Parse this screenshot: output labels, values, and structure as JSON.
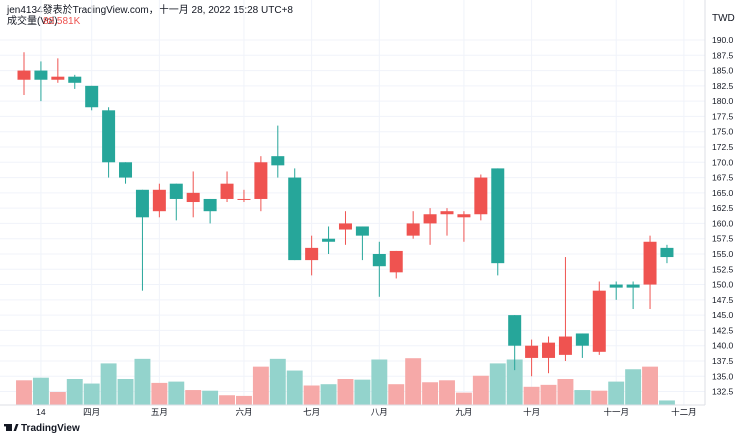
{
  "header": {
    "publisher": "jen4134發表於TradingView.com，十一月 28, 2022 15:28 UTC+8"
  },
  "footer": {
    "brand": "TradingView",
    "brand_icon": "tradingview-logo-icon"
  },
  "colors": {
    "up": "#ef5350",
    "down": "#26a69a",
    "vol_up": "#f6a9a8",
    "vol_down": "#93d3cc",
    "grid": "#f0f3fa",
    "axis_line": "#dcdfe6",
    "label_red": "#ef5350"
  },
  "chart_data": {
    "type": "candlestick",
    "title": "",
    "currency": "TWD",
    "ylim": [
      130.0,
      192.5
    ],
    "y_ticks": [
      132.5,
      135.0,
      137.5,
      140.0,
      142.5,
      145.0,
      147.5,
      150.0,
      152.5,
      155.0,
      157.5,
      160.0,
      162.5,
      165.0,
      167.5,
      170.0,
      172.5,
      175.0,
      177.5,
      180.0,
      182.5,
      185.0,
      187.5,
      190.0
    ],
    "x_ticks": [
      {
        "label": "14",
        "bar": 1
      },
      {
        "label": "四月",
        "bar": 4
      },
      {
        "label": "五月",
        "bar": 8
      },
      {
        "label": "六月",
        "bar": 13
      },
      {
        "label": "七月",
        "bar": 17
      },
      {
        "label": "八月",
        "bar": 21
      },
      {
        "label": "九月",
        "bar": 26
      },
      {
        "label": "十月",
        "bar": 30
      },
      {
        "label": "十一月",
        "bar": 35
      },
      {
        "label": "十二月",
        "bar": 39
      }
    ],
    "volume_indicator": {
      "name": "成交量(Vol)",
      "last_value": "88.581K"
    },
    "candles": [
      {
        "o": 183.5,
        "h": 188.0,
        "l": 181.0,
        "c": 185.0
      },
      {
        "o": 185.0,
        "h": 186.5,
        "l": 180.0,
        "c": 183.5
      },
      {
        "o": 183.5,
        "h": 187.0,
        "l": 183.0,
        "c": 184.0
      },
      {
        "o": 184.0,
        "h": 184.3,
        "l": 182.0,
        "c": 183.0
      },
      {
        "o": 182.5,
        "h": 182.5,
        "l": 178.5,
        "c": 179.0
      },
      {
        "o": 178.5,
        "h": 179.0,
        "l": 167.5,
        "c": 170.0
      },
      {
        "o": 170.0,
        "h": 170.0,
        "l": 166.5,
        "c": 167.5
      },
      {
        "o": 165.5,
        "h": 165.5,
        "l": 149.0,
        "c": 161.0
      },
      {
        "o": 162.0,
        "h": 166.5,
        "l": 161.0,
        "c": 165.5
      },
      {
        "o": 166.5,
        "h": 166.5,
        "l": 160.5,
        "c": 164.0
      },
      {
        "o": 163.5,
        "h": 168.5,
        "l": 161.0,
        "c": 165.0
      },
      {
        "o": 164.0,
        "h": 164.0,
        "l": 160.0,
        "c": 162.0
      },
      {
        "o": 164.0,
        "h": 168.5,
        "l": 163.5,
        "c": 166.5
      },
      {
        "o": 164.0,
        "h": 165.5,
        "l": 163.5,
        "c": 164.0
      },
      {
        "o": 164.0,
        "h": 171.0,
        "l": 162.0,
        "c": 170.0
      },
      {
        "o": 171.0,
        "h": 176.0,
        "l": 167.5,
        "c": 169.5
      },
      {
        "o": 167.5,
        "h": 169.0,
        "l": 154.0,
        "c": 154.0
      },
      {
        "o": 154.0,
        "h": 158.0,
        "l": 151.5,
        "c": 156.0
      },
      {
        "o": 157.5,
        "h": 159.5,
        "l": 155.0,
        "c": 157.0
      },
      {
        "o": 159.0,
        "h": 162.0,
        "l": 156.5,
        "c": 160.0
      },
      {
        "o": 159.5,
        "h": 159.5,
        "l": 154.0,
        "c": 158.0
      },
      {
        "o": 155.0,
        "h": 157.0,
        "l": 148.0,
        "c": 153.0
      },
      {
        "o": 152.0,
        "h": 155.5,
        "l": 151.0,
        "c": 155.5
      },
      {
        "o": 158.0,
        "h": 162.0,
        "l": 157.5,
        "c": 160.0
      },
      {
        "o": 160.0,
        "h": 162.5,
        "l": 156.5,
        "c": 161.5
      },
      {
        "o": 161.5,
        "h": 162.5,
        "l": 158.0,
        "c": 162.0
      },
      {
        "o": 161.0,
        "h": 162.0,
        "l": 157.0,
        "c": 161.5
      },
      {
        "o": 161.5,
        "h": 168.0,
        "l": 160.5,
        "c": 167.5
      },
      {
        "o": 169.0,
        "h": 169.0,
        "l": 151.5,
        "c": 153.5
      },
      {
        "o": 145.0,
        "h": 145.0,
        "l": 136.0,
        "c": 140.0
      },
      {
        "o": 138.0,
        "h": 141.0,
        "l": 135.0,
        "c": 140.0
      },
      {
        "o": 138.0,
        "h": 141.5,
        "l": 135.5,
        "c": 140.5
      },
      {
        "o": 138.5,
        "h": 154.5,
        "l": 137.5,
        "c": 141.5
      },
      {
        "o": 142.0,
        "h": 142.0,
        "l": 138.0,
        "c": 140.0
      },
      {
        "o": 139.0,
        "h": 150.5,
        "l": 138.5,
        "c": 149.0
      },
      {
        "o": 150.0,
        "h": 150.5,
        "l": 147.5,
        "c": 149.5
      },
      {
        "o": 150.0,
        "h": 150.5,
        "l": 146.0,
        "c": 149.5
      },
      {
        "o": 150.0,
        "h": 158.0,
        "l": 146.0,
        "c": 157.0
      },
      {
        "o": 156.0,
        "h": 156.5,
        "l": 153.5,
        "c": 154.5
      }
    ],
    "volume": {
      "max": 100,
      "values": [
        38,
        42,
        20,
        40,
        33,
        64,
        40,
        71,
        34,
        36,
        23,
        22,
        15,
        14,
        59,
        71,
        53,
        30,
        32,
        40,
        39,
        70,
        32,
        72,
        35,
        38,
        19,
        45,
        64,
        70,
        28,
        31,
        40,
        23,
        22,
        36,
        55,
        59,
        7
      ]
    }
  }
}
